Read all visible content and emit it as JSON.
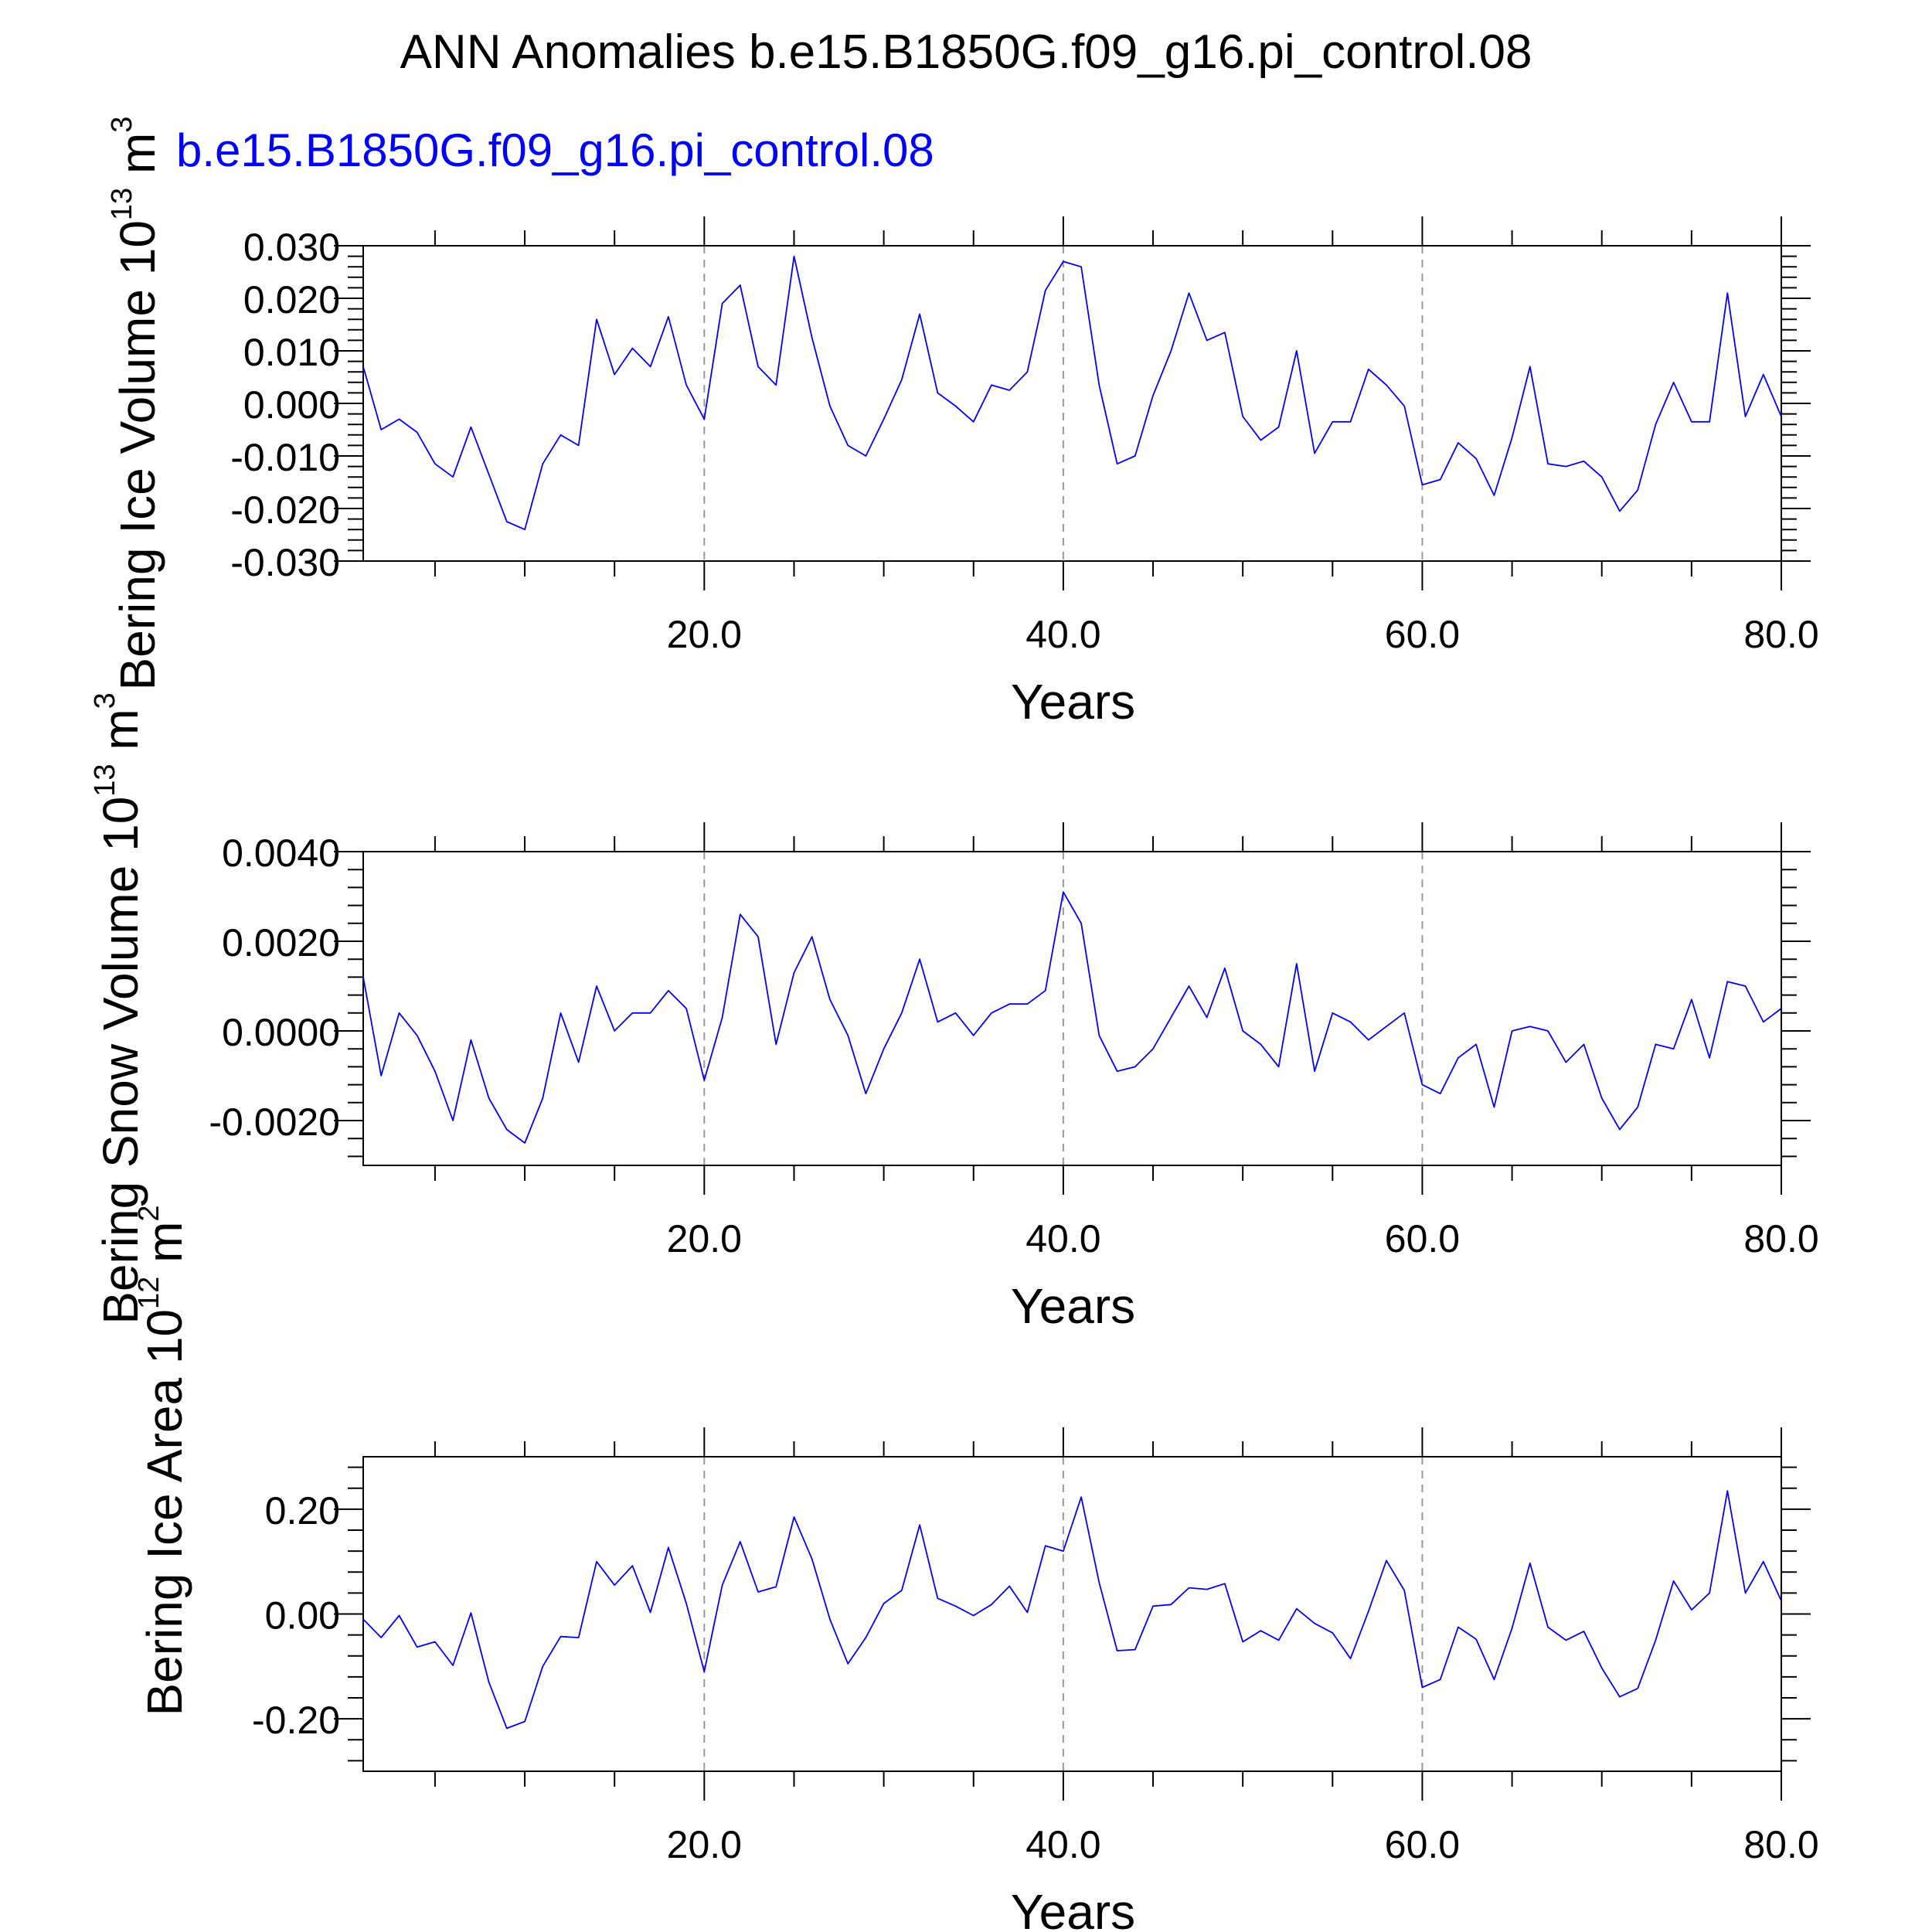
{
  "page": {
    "title": "ANN Anomalies b.e15.B1850G.f09_g16.pi_control.08",
    "case_label": "b.e15.B1850G.f09_g16.pi_control.08",
    "case_label_color": "#0000ff",
    "line_color": "#0000ff"
  },
  "chart_data": [
    {
      "type": "line",
      "ylabel_main": "Bering Ice Volume 10",
      "ylabel_exp": "13",
      "ylabel_unit": " m",
      "ylabel_unit_exp": "3",
      "xlabel": "Years",
      "xlim": [
        1,
        80
      ],
      "ylim": [
        -0.03,
        0.03
      ],
      "xticks": [
        20,
        40,
        60,
        80
      ],
      "xtick_labels": [
        "20.0",
        "40.0",
        "60.0",
        "80.0"
      ],
      "yticks": [
        -0.03,
        -0.02,
        -0.01,
        0.0,
        0.01,
        0.02,
        0.03
      ],
      "ytick_labels": [
        "-0.030",
        "-0.020",
        "-0.010",
        "0.000",
        "0.010",
        "0.020",
        "0.030"
      ],
      "grid": "x dashed",
      "series": [
        {
          "x": [
            1,
            2,
            3,
            4,
            5,
            6,
            7,
            8,
            9,
            10,
            11,
            12,
            13,
            14,
            15,
            16,
            17,
            18,
            19,
            20,
            21,
            22,
            23,
            24,
            25,
            26,
            27,
            28,
            29,
            30,
            31,
            32,
            33,
            34,
            35,
            36,
            37,
            38,
            39,
            40,
            41,
            42,
            43,
            44,
            45,
            46,
            47,
            48,
            49,
            50,
            51,
            52,
            53,
            54,
            55,
            56,
            57,
            58,
            59,
            60,
            61,
            62,
            63,
            64,
            65,
            66,
            67,
            68,
            69,
            70,
            71,
            72,
            73,
            74,
            75,
            76,
            77,
            78,
            79,
            80
          ],
          "values": [
            0.007,
            -0.005,
            -0.003,
            -0.0055,
            -0.0115,
            -0.014,
            -0.0045,
            -0.0135,
            -0.0225,
            -0.024,
            -0.0115,
            -0.006,
            -0.008,
            0.016,
            0.0055,
            0.0105,
            0.007,
            0.0165,
            0.0035,
            -0.003,
            0.019,
            0.0225,
            0.007,
            0.0035,
            0.028,
            0.0125,
            -0.0005,
            -0.008,
            -0.01,
            -0.003,
            0.0045,
            0.017,
            0.002,
            -0.0005,
            -0.0035,
            0.0035,
            0.0025,
            0.006,
            0.0215,
            0.027,
            0.026,
            0.0035,
            -0.0115,
            -0.01,
            0.0015,
            0.01,
            0.021,
            0.012,
            0.0135,
            -0.0025,
            -0.007,
            -0.0045,
            0.01,
            -0.0095,
            -0.0035,
            -0.0035,
            0.0065,
            0.0035,
            -0.0005,
            -0.0155,
            -0.0145,
            -0.0075,
            -0.0105,
            -0.0175,
            -0.0065,
            0.007,
            -0.0115,
            -0.012,
            -0.011,
            -0.014,
            -0.0205,
            -0.0165,
            -0.004,
            0.004,
            -0.0035,
            -0.0035,
            0.021,
            -0.0025,
            0.0055,
            -0.0025
          ]
        }
      ]
    },
    {
      "type": "line",
      "ylabel_main": "Bering Snow Volume 10",
      "ylabel_exp": "13",
      "ylabel_unit": " m",
      "ylabel_unit_exp": "3",
      "xlabel": "Years",
      "xlim": [
        1,
        80
      ],
      "ylim": [
        -0.003,
        0.004
      ],
      "xticks": [
        20,
        40,
        60,
        80
      ],
      "xtick_labels": [
        "20.0",
        "40.0",
        "60.0",
        "80.0"
      ],
      "yticks": [
        -0.002,
        0.0,
        0.002,
        0.004
      ],
      "ytick_labels": [
        "-0.0020",
        "0.0000",
        "0.0020",
        "0.0040"
      ],
      "grid": "x dashed",
      "series": [
        {
          "x": [
            1,
            2,
            3,
            4,
            5,
            6,
            7,
            8,
            9,
            10,
            11,
            12,
            13,
            14,
            15,
            16,
            17,
            18,
            19,
            20,
            21,
            22,
            23,
            24,
            25,
            26,
            27,
            28,
            29,
            30,
            31,
            32,
            33,
            34,
            35,
            36,
            37,
            38,
            39,
            40,
            41,
            42,
            43,
            44,
            45,
            46,
            47,
            48,
            49,
            50,
            51,
            52,
            53,
            54,
            55,
            56,
            57,
            58,
            59,
            60,
            61,
            62,
            63,
            64,
            65,
            66,
            67,
            68,
            69,
            70,
            71,
            72,
            73,
            74,
            75,
            76,
            77,
            78,
            79,
            80
          ],
          "values": [
            0.0012,
            -0.001,
            0.0004,
            -0.0001,
            -0.0009,
            -0.002,
            -0.0002,
            -0.0015,
            -0.0022,
            -0.0025,
            -0.0015,
            0.0004,
            -0.0007,
            0.001,
            0.0,
            0.0004,
            0.0004,
            0.0009,
            0.0005,
            -0.0011,
            0.0003,
            0.0026,
            0.0021,
            -0.0003,
            0.0013,
            0.0021,
            0.0007,
            -0.0001,
            -0.0014,
            -0.0004,
            0.0004,
            0.0016,
            0.0002,
            0.0004,
            -0.0001,
            0.0004,
            0.0006,
            0.0006,
            0.0009,
            0.0031,
            0.0024,
            -0.0001,
            -0.0009,
            -0.0008,
            -0.0004,
            0.0003,
            0.001,
            0.0003,
            0.0014,
            0.0,
            -0.0003,
            -0.0008,
            0.0015,
            -0.0009,
            0.0004,
            0.0002,
            -0.0002,
            0.0001,
            0.0004,
            -0.0012,
            -0.0014,
            -0.0006,
            -0.0003,
            -0.0017,
            0.0,
            0.0001,
            0.0,
            -0.0007,
            -0.0003,
            -0.0015,
            -0.0022,
            -0.0017,
            -0.0003,
            -0.0004,
            0.0007,
            -0.0006,
            0.0011,
            0.001,
            0.0002,
            0.0005
          ]
        }
      ]
    },
    {
      "type": "line",
      "ylabel_main": "Bering Ice Area 10",
      "ylabel_exp": "12",
      "ylabel_unit": " m",
      "ylabel_unit_exp": "2",
      "xlabel": "Years",
      "xlim": [
        1,
        80
      ],
      "ylim": [
        -0.3,
        0.3
      ],
      "xticks": [
        20,
        40,
        60,
        80
      ],
      "xtick_labels": [
        "20.0",
        "40.0",
        "60.0",
        "80.0"
      ],
      "yticks": [
        -0.2,
        0.0,
        0.2
      ],
      "ytick_labels": [
        "-0.20",
        "0.00",
        "0.20"
      ],
      "grid": "x dashed",
      "series": [
        {
          "x": [
            1,
            2,
            3,
            4,
            5,
            6,
            7,
            8,
            9,
            10,
            11,
            12,
            13,
            14,
            15,
            16,
            17,
            18,
            19,
            20,
            21,
            22,
            23,
            24,
            25,
            26,
            27,
            28,
            29,
            30,
            31,
            32,
            33,
            34,
            35,
            36,
            37,
            38,
            39,
            40,
            41,
            42,
            43,
            44,
            45,
            46,
            47,
            48,
            49,
            50,
            51,
            52,
            53,
            54,
            55,
            56,
            57,
            58,
            59,
            60,
            61,
            62,
            63,
            64,
            65,
            66,
            67,
            68,
            69,
            70,
            71,
            72,
            73,
            74,
            75,
            76,
            77,
            78,
            79,
            80
          ],
          "values": [
            -0.01,
            -0.045,
            -0.003,
            -0.063,
            -0.053,
            -0.098,
            0.002,
            -0.13,
            -0.218,
            -0.205,
            -0.1,
            -0.043,
            -0.045,
            0.1,
            0.055,
            0.092,
            0.003,
            0.127,
            0.02,
            -0.11,
            0.055,
            0.138,
            0.042,
            0.052,
            0.185,
            0.105,
            -0.01,
            -0.095,
            -0.045,
            0.02,
            0.045,
            0.17,
            0.03,
            0.015,
            -0.003,
            0.018,
            0.053,
            0.003,
            0.13,
            0.12,
            0.223,
            0.06,
            -0.07,
            -0.068,
            0.015,
            0.018,
            0.05,
            0.047,
            0.058,
            -0.053,
            -0.032,
            -0.05,
            0.01,
            -0.018,
            -0.036,
            -0.085,
            0.005,
            0.102,
            0.045,
            -0.14,
            -0.125,
            -0.025,
            -0.048,
            -0.125,
            -0.027,
            0.097,
            -0.025,
            -0.05,
            -0.033,
            -0.103,
            -0.158,
            -0.142,
            -0.05,
            0.063,
            0.008,
            0.04,
            0.235,
            0.04,
            0.1,
            0.025
          ]
        }
      ]
    }
  ]
}
